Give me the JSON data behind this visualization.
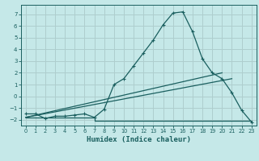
{
  "xlabel": "Humidex (Indice chaleur)",
  "background_color": "#c5e8e8",
  "grid_color": "#aecece",
  "line_color": "#1a5f5f",
  "xlim": [
    -0.5,
    23.5
  ],
  "ylim": [
    -2.5,
    7.8
  ],
  "yticks": [
    -2,
    -1,
    0,
    1,
    2,
    3,
    4,
    5,
    6,
    7
  ],
  "xticks": [
    0,
    1,
    2,
    3,
    4,
    5,
    6,
    7,
    8,
    9,
    10,
    11,
    12,
    13,
    14,
    15,
    16,
    17,
    18,
    19,
    20,
    21,
    22,
    23
  ],
  "curve1_x": [
    0,
    1,
    2,
    3,
    4,
    5,
    6,
    7,
    8,
    9,
    10,
    11,
    12,
    13,
    14,
    15,
    16,
    17,
    18,
    19,
    20,
    21,
    22,
    23
  ],
  "curve1_y": [
    -1.5,
    -1.5,
    -1.9,
    -1.7,
    -1.7,
    -1.6,
    -1.5,
    -1.8,
    -1.1,
    1.0,
    1.5,
    2.6,
    3.7,
    4.8,
    6.1,
    7.1,
    7.2,
    5.5,
    3.2,
    2.0,
    1.5,
    0.3,
    -1.2,
    -2.2
  ],
  "curve2_x": [
    0,
    7,
    7,
    23
  ],
  "curve2_y": [
    -1.8,
    -1.8,
    -2.1,
    -2.1
  ],
  "curve3_x": [
    0,
    20
  ],
  "curve3_y": [
    -1.8,
    2.0
  ],
  "curve4_x": [
    0,
    21
  ],
  "curve4_y": [
    -1.8,
    1.5
  ]
}
